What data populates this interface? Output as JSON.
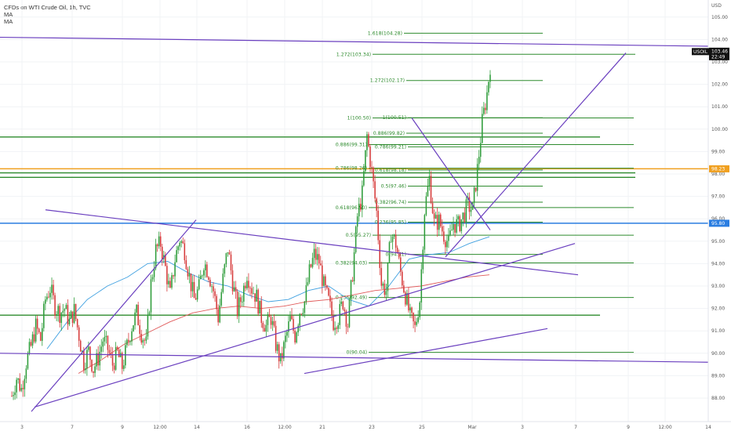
{
  "chart_data": {
    "type": "candlestick",
    "title": "CFDs on WTI Crude Oil, 1h, TVC",
    "indicators": [
      "MA",
      "MA"
    ],
    "currency": "USD",
    "symbol": "USOIL",
    "last_price": "103.46",
    "countdown": "22:49",
    "price_tags": [
      {
        "value": "98.23",
        "color": "#f0a020"
      },
      {
        "value": "95.80",
        "color": "#2a7de1"
      }
    ],
    "y_range": [
      87.5,
      105.5
    ],
    "y_ticks": [
      "88.00",
      "89.00",
      "90.00",
      "91.00",
      "92.00",
      "93.00",
      "94.00",
      "95.00",
      "96.00",
      "97.00",
      "98.00",
      "99.00",
      "100.00",
      "101.00",
      "102.00",
      "103.00",
      "104.00",
      "105.00"
    ],
    "x_ticks": [
      "3",
      "7",
      "9",
      "12:00",
      "14",
      "16",
      "12:00",
      "21",
      "23",
      "25",
      "Mar",
      "3",
      "7",
      "9",
      "12:00",
      "14"
    ],
    "horizontal_levels": [
      {
        "price": 95.8,
        "color": "#2a7de1"
      },
      {
        "price": 98.23,
        "color": "#f0a020"
      },
      {
        "price": 98.05,
        "color": "#2e8b2e"
      },
      {
        "price": 97.85,
        "color": "#2e8b2e"
      },
      {
        "price": 99.65,
        "color": "#2e8b2e"
      },
      {
        "price": 91.7,
        "color": "#2e8b2e"
      }
    ],
    "fib_levels": [
      {
        "label": "1.618(104.28)",
        "price": 104.28
      },
      {
        "label": "1.272(103.34)",
        "price": 103.34
      },
      {
        "label": "1.272(102.17)",
        "price": 102.17
      },
      {
        "label": "1(100.50)",
        "price": 100.5
      },
      {
        "label": "1(100.51)",
        "price": 100.51
      },
      {
        "label": "0.886(99.82)",
        "price": 99.82
      },
      {
        "label": "0.886(99.31)",
        "price": 99.31
      },
      {
        "label": "0.786(99.21)",
        "price": 99.21
      },
      {
        "label": "0.786(98.26)",
        "price": 98.26
      },
      {
        "label": "0.618(98.18)",
        "price": 98.18
      },
      {
        "label": "0.5(97.46)",
        "price": 97.46
      },
      {
        "label": "0.382(96.74)",
        "price": 96.74
      },
      {
        "label": "0.618(96.50)",
        "price": 96.5
      },
      {
        "label": "0.236(95.85)",
        "price": 95.85
      },
      {
        "label": "0.5(95.27)",
        "price": 95.27
      },
      {
        "label": "0(94.41)",
        "price": 94.41
      },
      {
        "label": "0.382(94.03)",
        "price": 94.03
      },
      {
        "label": "0.236(92.49)",
        "price": 92.49
      },
      {
        "label": "0(90.04)",
        "price": 90.04
      }
    ],
    "price_path": [
      88.1,
      88.9,
      88.4,
      89.6,
      90.3,
      91.2,
      90.6,
      92.4,
      92.9,
      92.1,
      91.8,
      92.0,
      91.4,
      91.9,
      90.8,
      89.6,
      90.1,
      89.3,
      89.8,
      90.6,
      90.2,
      89.5,
      90.0,
      89.4,
      90.3,
      91.2,
      91.8,
      90.9,
      90.4,
      93.1,
      94.6,
      94.9,
      93.8,
      92.6,
      94.2,
      95.1,
      94.6,
      93.4,
      92.4,
      92.9,
      94.1,
      93.6,
      92.8,
      91.6,
      93.3,
      94.7,
      93.2,
      91.9,
      92.6,
      93.6,
      92.9,
      92.5,
      91.6,
      91.2,
      91.6,
      90.4,
      89.6,
      90.6,
      91.5,
      90.8,
      91.9,
      92.3,
      93.6,
      94.4,
      94.1,
      93.0,
      92.3,
      91.4,
      91.6,
      92.3,
      91.3,
      93.6,
      96.1,
      97.1,
      99.7,
      98.1,
      96.3,
      93.1,
      92.8,
      95.4,
      94.9,
      93.6,
      92.6,
      91.6,
      91.1,
      92.4,
      96.4,
      97.8,
      95.8,
      95.9,
      95.3,
      94.9,
      95.8,
      95.7,
      96.1,
      96.6,
      96.4,
      98.2,
      100.3,
      101.6,
      103.5
    ],
    "ma_fast": [
      90.2,
      91.4,
      92.4,
      93.0,
      93.4,
      94.0,
      94.1,
      93.6,
      93.2,
      93.0,
      92.6,
      92.3,
      92.4,
      92.8,
      93.0,
      92.4,
      92.1,
      93.0,
      94.2,
      94.4,
      94.5,
      94.9,
      95.2
    ],
    "ma_slow": [
      89.1,
      89.7,
      90.4,
      90.9,
      91.4,
      91.8,
      92.0,
      92.1,
      92.0,
      92.1,
      92.3,
      92.4,
      92.6,
      92.8,
      92.9,
      93.0,
      93.2,
      93.4,
      93.5
    ],
    "trendlines": [
      {
        "from": [
          "Feb 2",
          87.4
        ],
        "to": [
          "Feb 14",
          95.95
        ],
        "color": "#6a3fbf"
      },
      {
        "from": [
          "Feb 3",
          87.6
        ],
        "to": [
          "Mar 6",
          94.9
        ],
        "color": "#6a3fbf"
      },
      {
        "from": [
          "Feb 20",
          89.1
        ],
        "to": [
          "Mar 4",
          91.1
        ],
        "color": "#6a3fbf"
      },
      {
        "from": [
          "Feb 4",
          96.4
        ],
        "to": [
          "Mar 7",
          93.5
        ],
        "color": "#6a3fbf"
      },
      {
        "from": [
          "Feb 24",
          100.5
        ],
        "to": [
          "Feb 28",
          95.5
        ],
        "color": "#6a3fbf"
      },
      {
        "from": [
          "Feb 27",
          94.3
        ],
        "to": [
          "Mar 8",
          103.4
        ],
        "color": "#6a3fbf"
      },
      {
        "from": [
          "Jan 31",
          104.1
        ],
        "to": [
          "Mar 15",
          103.7
        ],
        "color": "#6a3fbf"
      },
      {
        "from": [
          "Jan 31",
          90.0
        ],
        "to": [
          "Mar 15",
          89.6
        ],
        "color": "#6a3fbf"
      }
    ]
  }
}
